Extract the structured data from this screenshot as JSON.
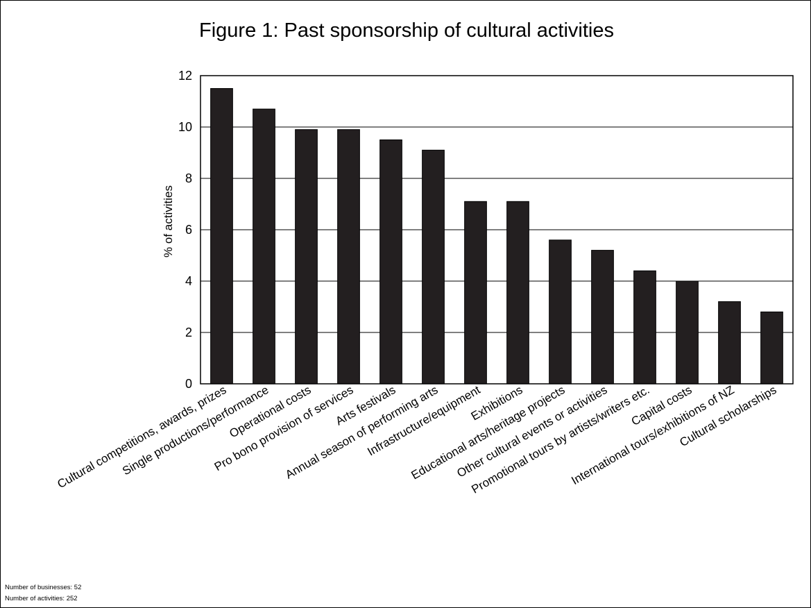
{
  "chart_data": {
    "type": "bar",
    "title": "Figure 1: Past sponsorship of cultural activities",
    "xlabel": "",
    "ylabel": "% of activities",
    "ylim": [
      0,
      12
    ],
    "yticks": [
      0,
      2,
      4,
      6,
      8,
      10,
      12
    ],
    "grid": true,
    "categories": [
      "Cultural competitions, awards, prizes",
      "Single productions/performance",
      "Operational costs",
      "Pro bono provision of services",
      "Arts festivals",
      "Annual season of performing arts",
      "Infrastructure/equipment",
      "Exhibitions",
      "Educational arts/heritage projects",
      "Other cultural events or activities",
      "Promotional tours by artists/writers etc.",
      "Capital costs",
      "International tours/exhibitions of NZ",
      "Cultural scholarships"
    ],
    "values": [
      11.5,
      10.7,
      9.9,
      9.9,
      9.5,
      9.1,
      7.1,
      7.1,
      5.6,
      5.2,
      4.4,
      4.0,
      3.2,
      2.8
    ],
    "bar_color": "#231f20"
  },
  "notes": [
    "Number of businesses: 52",
    "Number of activities: 252"
  ]
}
